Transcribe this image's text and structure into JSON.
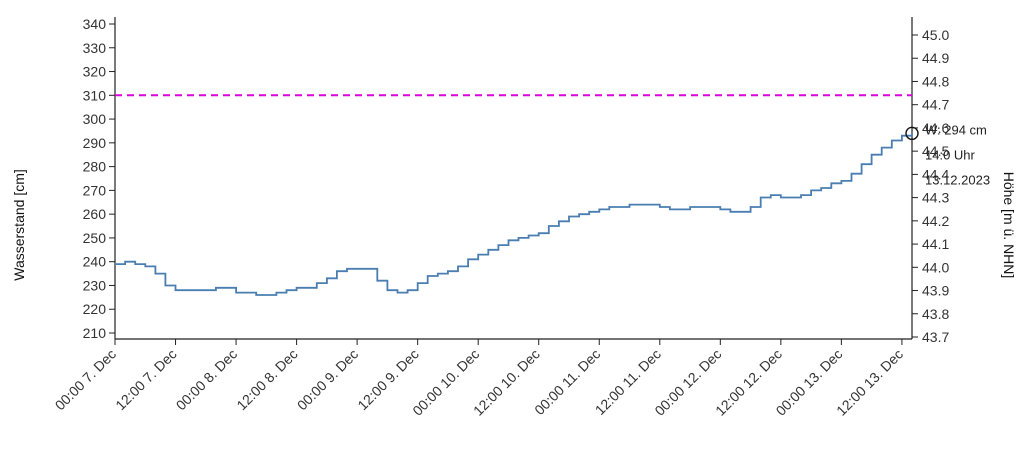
{
  "chart_data": {
    "type": "line",
    "ylabel_left": "Wasserstand [cm]",
    "ylabel_right": "Höhe [m ü. NHN]",
    "y_left_ticks": [
      210,
      220,
      230,
      240,
      250,
      260,
      270,
      280,
      290,
      300,
      310,
      320,
      330,
      340
    ],
    "y_right_ticks": [
      "43.7",
      "43.8",
      "43.9",
      "44.0",
      "44.1",
      "44.2",
      "44.3",
      "44.4",
      "44.5",
      "44.6",
      "44.7",
      "44.8",
      "44.9",
      "45.0"
    ],
    "ylim_left": [
      205,
      345
    ],
    "ylim_right": [
      43.7,
      45.05
    ],
    "x_ticks": [
      "00:00 7. Dec",
      "12:00 7. Dec",
      "00:00 8. Dec",
      "12:00 8. Dec",
      "00:00 9. Dec",
      "12:00 9. Dec",
      "00:00 10. Dec",
      "12:00 10. Dec",
      "00:00 11. Dec",
      "12:00 11. Dec",
      "00:00 12. Dec",
      "12:00 12. Dec",
      "00:00 13. Dec",
      "12:00 13. Dec"
    ],
    "threshold": {
      "value": 310,
      "color": "#dd00dd"
    },
    "series": [
      {
        "color": "#4a7eb0",
        "points": [
          [
            "2023-12-07 00:00",
            239
          ],
          [
            "2023-12-07 02:00",
            240
          ],
          [
            "2023-12-07 04:00",
            239
          ],
          [
            "2023-12-07 06:00",
            238
          ],
          [
            "2023-12-07 08:00",
            235
          ],
          [
            "2023-12-07 10:00",
            230
          ],
          [
            "2023-12-07 12:00",
            228
          ],
          [
            "2023-12-07 14:00",
            228
          ],
          [
            "2023-12-07 16:00",
            228
          ],
          [
            "2023-12-07 18:00",
            228
          ],
          [
            "2023-12-07 20:00",
            229
          ],
          [
            "2023-12-07 22:00",
            229
          ],
          [
            "2023-12-08 00:00",
            227
          ],
          [
            "2023-12-08 02:00",
            227
          ],
          [
            "2023-12-08 04:00",
            226
          ],
          [
            "2023-12-08 06:00",
            226
          ],
          [
            "2023-12-08 08:00",
            227
          ],
          [
            "2023-12-08 10:00",
            228
          ],
          [
            "2023-12-08 12:00",
            229
          ],
          [
            "2023-12-08 14:00",
            229
          ],
          [
            "2023-12-08 16:00",
            231
          ],
          [
            "2023-12-08 18:00",
            233
          ],
          [
            "2023-12-08 20:00",
            236
          ],
          [
            "2023-12-08 22:00",
            237
          ],
          [
            "2023-12-09 00:00",
            237
          ],
          [
            "2023-12-09 02:00",
            237
          ],
          [
            "2023-12-09 04:00",
            232
          ],
          [
            "2023-12-09 06:00",
            228
          ],
          [
            "2023-12-09 08:00",
            227
          ],
          [
            "2023-12-09 10:00",
            228
          ],
          [
            "2023-12-09 12:00",
            231
          ],
          [
            "2023-12-09 14:00",
            234
          ],
          [
            "2023-12-09 16:00",
            235
          ],
          [
            "2023-12-09 18:00",
            236
          ],
          [
            "2023-12-09 20:00",
            238
          ],
          [
            "2023-12-09 22:00",
            241
          ],
          [
            "2023-12-10 00:00",
            243
          ],
          [
            "2023-12-10 02:00",
            245
          ],
          [
            "2023-12-10 04:00",
            247
          ],
          [
            "2023-12-10 06:00",
            249
          ],
          [
            "2023-12-10 08:00",
            250
          ],
          [
            "2023-12-10 10:00",
            251
          ],
          [
            "2023-12-10 12:00",
            252
          ],
          [
            "2023-12-10 14:00",
            255
          ],
          [
            "2023-12-10 16:00",
            257
          ],
          [
            "2023-12-10 18:00",
            259
          ],
          [
            "2023-12-10 20:00",
            260
          ],
          [
            "2023-12-10 22:00",
            261
          ],
          [
            "2023-12-11 00:00",
            262
          ],
          [
            "2023-12-11 02:00",
            263
          ],
          [
            "2023-12-11 04:00",
            263
          ],
          [
            "2023-12-11 06:00",
            264
          ],
          [
            "2023-12-11 08:00",
            264
          ],
          [
            "2023-12-11 10:00",
            264
          ],
          [
            "2023-12-11 12:00",
            263
          ],
          [
            "2023-12-11 14:00",
            262
          ],
          [
            "2023-12-11 16:00",
            262
          ],
          [
            "2023-12-11 18:00",
            263
          ],
          [
            "2023-12-11 20:00",
            263
          ],
          [
            "2023-12-11 22:00",
            263
          ],
          [
            "2023-12-12 00:00",
            262
          ],
          [
            "2023-12-12 02:00",
            261
          ],
          [
            "2023-12-12 04:00",
            261
          ],
          [
            "2023-12-12 06:00",
            263
          ],
          [
            "2023-12-12 08:00",
            267
          ],
          [
            "2023-12-12 10:00",
            268
          ],
          [
            "2023-12-12 12:00",
            267
          ],
          [
            "2023-12-12 14:00",
            267
          ],
          [
            "2023-12-12 16:00",
            268
          ],
          [
            "2023-12-12 18:00",
            270
          ],
          [
            "2023-12-12 20:00",
            271
          ],
          [
            "2023-12-12 22:00",
            273
          ],
          [
            "2023-12-13 00:00",
            274
          ],
          [
            "2023-12-13 02:00",
            277
          ],
          [
            "2023-12-13 04:00",
            281
          ],
          [
            "2023-12-13 06:00",
            285
          ],
          [
            "2023-12-13 08:00",
            288
          ],
          [
            "2023-12-13 10:00",
            291
          ],
          [
            "2023-12-13 12:00",
            293
          ],
          [
            "2023-12-13 14:00",
            294
          ]
        ]
      }
    ],
    "x_range": [
      "2023-12-07 00:00",
      "2023-12-13 14:00"
    ],
    "tooltip": {
      "point": [
        "2023-12-13 14:00",
        294
      ],
      "line1": "W: 294 cm",
      "line2": "14:0 Uhr",
      "line3": "13.12.2023"
    },
    "grid": false
  }
}
